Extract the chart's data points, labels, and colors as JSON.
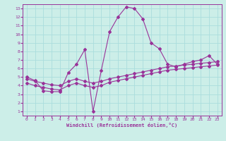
{
  "xlabel": "Windchill (Refroidissement éolien,°C)",
  "background_color": "#cceee8",
  "line_color": "#993399",
  "grid_color": "#aadddd",
  "x_ticks": [
    0,
    1,
    2,
    3,
    4,
    5,
    6,
    7,
    8,
    9,
    10,
    11,
    12,
    13,
    14,
    15,
    16,
    17,
    18,
    19,
    20,
    21,
    22,
    23
  ],
  "y_ticks": [
    1,
    2,
    3,
    4,
    5,
    6,
    7,
    8,
    9,
    10,
    11,
    12,
    13
  ],
  "ylim": [
    0.5,
    13.5
  ],
  "xlim": [
    -0.5,
    23.5
  ],
  "curve1_x": [
    0,
    1,
    2,
    3,
    4,
    5,
    6,
    7,
    8,
    9,
    10,
    11,
    12,
    13,
    14,
    15,
    16,
    17,
    18,
    19,
    20,
    21,
    22,
    23
  ],
  "curve1_y": [
    5.0,
    4.6,
    3.4,
    3.3,
    3.3,
    5.5,
    6.5,
    8.2,
    1.0,
    5.8,
    10.3,
    12.0,
    13.2,
    13.0,
    11.8,
    9.0,
    8.3,
    6.5,
    6.2,
    6.5,
    6.8,
    7.0,
    7.5,
    6.5
  ],
  "curve2_x": [
    0,
    1,
    2,
    3,
    4,
    5,
    6,
    7,
    8,
    9,
    10,
    11,
    12,
    13,
    14,
    15,
    16,
    17,
    18,
    19,
    20,
    21,
    22,
    23
  ],
  "curve2_y": [
    4.8,
    4.5,
    4.3,
    4.1,
    4.0,
    4.5,
    4.8,
    4.5,
    4.3,
    4.5,
    4.8,
    5.0,
    5.2,
    5.4,
    5.6,
    5.8,
    6.0,
    6.2,
    6.3,
    6.4,
    6.5,
    6.6,
    6.7,
    6.8
  ],
  "curve3_x": [
    0,
    1,
    2,
    3,
    4,
    5,
    6,
    7,
    8,
    9,
    10,
    11,
    12,
    13,
    14,
    15,
    16,
    17,
    18,
    19,
    20,
    21,
    22,
    23
  ],
  "curve3_y": [
    4.3,
    4.0,
    3.8,
    3.6,
    3.5,
    4.0,
    4.3,
    4.0,
    3.8,
    4.0,
    4.4,
    4.6,
    4.8,
    5.0,
    5.2,
    5.4,
    5.6,
    5.8,
    5.9,
    6.0,
    6.1,
    6.2,
    6.3,
    6.4
  ]
}
